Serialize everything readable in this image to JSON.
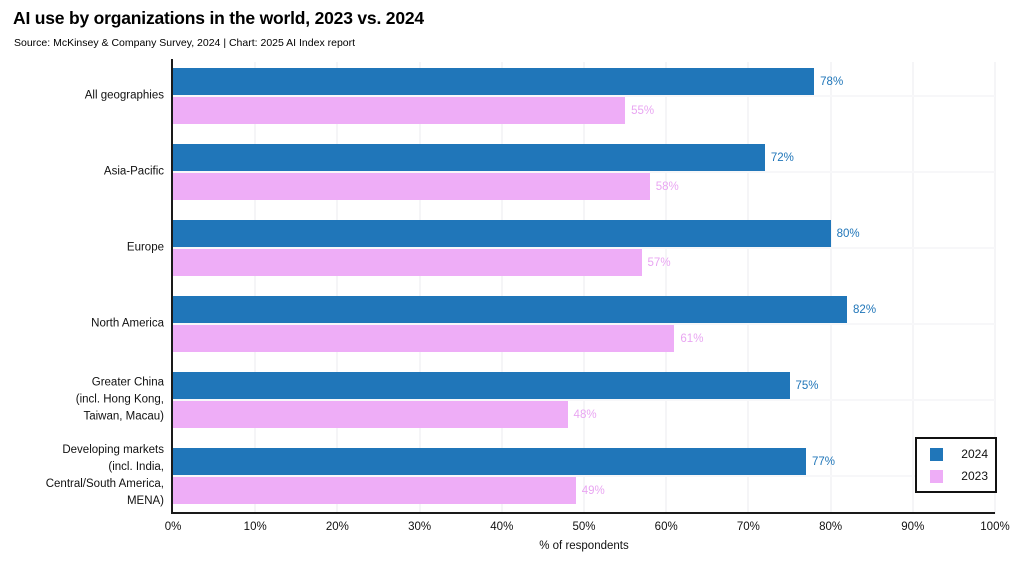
{
  "title": "AI use by organizations in the world, 2023 vs. 2024",
  "subtitle": "Source: McKinsey & Company Survey, 2024 | Chart: 2025 AI Index report",
  "colors": {
    "series_2024": "#2076b9",
    "series_2023": "#eeadf7",
    "label_2024_text": "#2076b9",
    "label_2023_text": "#e9a6f2",
    "axis": "#1a1a1a",
    "grid": "#f5f5f7",
    "text": "#111111"
  },
  "chart_data": {
    "type": "bar",
    "orientation": "horizontal",
    "title": "AI use by organizations in the world, 2023 vs. 2024",
    "subtitle": "Source: McKinsey & Company Survey, 2024 | Chart: 2025 AI Index report",
    "categories": [
      "All geographies",
      "Asia-Pacific",
      "Europe",
      "North America",
      "Greater China\n(incl. Hong Kong,\nTaiwan, Macau)",
      "Developing markets\n(incl. India,\nCentral/South America,\nMENA)"
    ],
    "series": [
      {
        "name": "2024",
        "color": "#2076b9",
        "label_color": "#2076b9",
        "values": [
          78,
          72,
          80,
          82,
          75,
          77
        ],
        "labels": [
          "78%",
          "72%",
          "80%",
          "82%",
          "75%",
          "77%"
        ]
      },
      {
        "name": "2023",
        "color": "#eeadf7",
        "label_color": "#e9a6f2",
        "values": [
          55,
          58,
          57,
          61,
          48,
          49
        ],
        "labels": [
          "55%",
          "58%",
          "57%",
          "61%",
          "48%",
          "49%"
        ]
      }
    ],
    "xlabel": "% of respondents",
    "xlim": [
      0,
      100
    ],
    "xticks": [
      "0%",
      "10%",
      "20%",
      "30%",
      "40%",
      "50%",
      "60%",
      "70%",
      "80%",
      "90%",
      "100%"
    ],
    "grid": "on",
    "legend_position": "lower-right",
    "legend_entries": [
      "2024",
      "2023"
    ]
  }
}
